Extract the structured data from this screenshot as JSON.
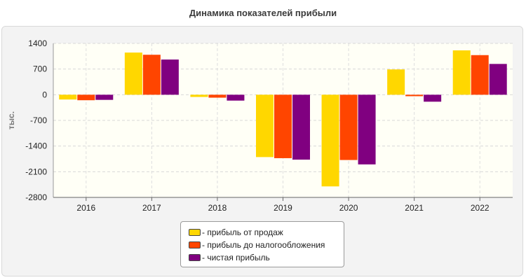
{
  "title": "Динамика показателей прибыли",
  "legend": {
    "items": [
      {
        "label": "- прибыль от продаж",
        "color": "#ffd700"
      },
      {
        "label": "- прибыль до налогообложения",
        "color": "#ff4500"
      },
      {
        "label": "- чистая прибыль",
        "color": "#800080"
      }
    ]
  },
  "chart_data": {
    "type": "bar",
    "title": "Динамика показателей прибыли",
    "xlabel": "",
    "ylabel": "тыс.",
    "ylim": [
      -2800,
      1400
    ],
    "yticks": [
      1400,
      700,
      0,
      -700,
      -1400,
      -2100,
      -2800
    ],
    "grid": true,
    "legend_position": "bottom",
    "categories": [
      "2016",
      "2017",
      "2018",
      "2019",
      "2020",
      "2021",
      "2022"
    ],
    "series": [
      {
        "name": "прибыль от продаж",
        "color": "#ffd700",
        "values": [
          -130,
          1150,
          -60,
          -1700,
          -2500,
          690,
          1210
        ]
      },
      {
        "name": "прибыль до налогообложения",
        "color": "#ff4500",
        "values": [
          -150,
          1090,
          -80,
          -1730,
          -1780,
          -40,
          1080
        ]
      },
      {
        "name": "чистая прибыль",
        "color": "#800080",
        "values": [
          -140,
          960,
          -160,
          -1770,
          -1900,
          -190,
          840
        ]
      }
    ]
  }
}
